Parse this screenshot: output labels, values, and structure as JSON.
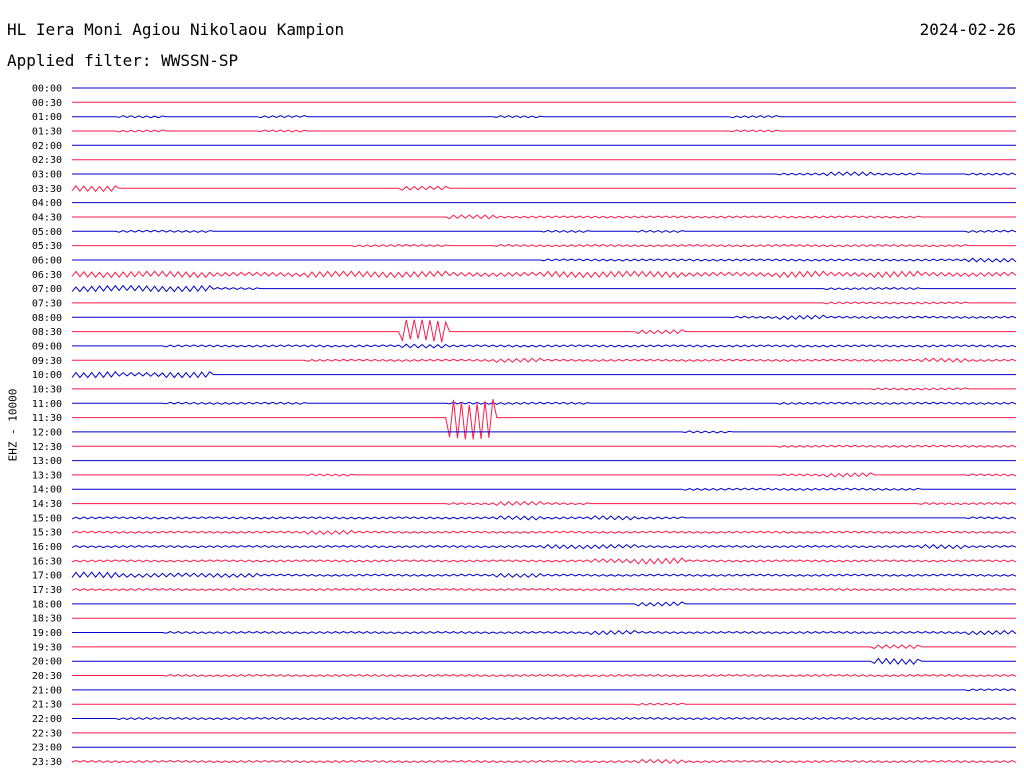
{
  "header": {
    "station": "HL Iera Moni Agiou Nikolaou Kampion",
    "date": "2024-02-26",
    "filter": "Applied filter: WWSSN-SP"
  },
  "axis": {
    "ylabel": "EHZ - 10000"
  },
  "colors": {
    "even_trace": "#0000cc",
    "odd_trace": "#ff1a4a",
    "text": "#000000"
  },
  "chart_data": {
    "type": "line",
    "title": "HL Iera Moni Agiou Nikolaou Kampion",
    "ylabel": "EHZ - 10000",
    "row_labels": [
      "00:00",
      "00:30",
      "01:00",
      "01:30",
      "02:00",
      "02:30",
      "03:00",
      "03:30",
      "04:00",
      "04:30",
      "05:00",
      "05:30",
      "06:00",
      "06:30",
      "07:00",
      "07:30",
      "08:00",
      "08:30",
      "09:00",
      "09:30",
      "10:00",
      "10:30",
      "11:00",
      "11:30",
      "12:00",
      "12:30",
      "13:00",
      "13:30",
      "14:00",
      "14:30",
      "15:00",
      "15:30",
      "16:00",
      "16:30",
      "17:00",
      "17:30",
      "18:00",
      "18:30",
      "19:00",
      "19:30",
      "20:00",
      "20:30",
      "21:00",
      "21:30",
      "22:00",
      "22:30",
      "23:00",
      "23:30"
    ],
    "series": [
      {
        "values": [
          0,
          0,
          0,
          0,
          0,
          0,
          0,
          0,
          0,
          0,
          0,
          0,
          0,
          0,
          0,
          0,
          0,
          0,
          0,
          0
        ]
      },
      {
        "values": [
          0,
          0,
          0,
          0,
          0,
          0,
          0,
          0,
          0,
          0,
          0,
          0,
          0,
          0,
          0,
          0,
          0,
          0,
          0,
          0
        ]
      },
      {
        "values": [
          0,
          1,
          0,
          0,
          1,
          0,
          0,
          0,
          0,
          1,
          0,
          0,
          0,
          0,
          1,
          0,
          0,
          0,
          0,
          0
        ]
      },
      {
        "values": [
          0,
          1,
          0,
          0,
          1,
          0,
          0,
          0,
          0,
          0,
          0,
          0,
          0,
          0,
          1,
          0,
          0,
          0,
          0,
          0
        ]
      },
      {
        "values": [
          0,
          0,
          0,
          0,
          0,
          0,
          0,
          0,
          0,
          0,
          0,
          0,
          0,
          0,
          0,
          0,
          0,
          0,
          0,
          0
        ]
      },
      {
        "values": [
          0,
          0,
          0,
          0,
          0,
          0,
          0,
          0,
          0,
          0,
          0,
          0,
          0,
          0,
          0,
          0,
          0,
          0,
          0,
          0
        ]
      },
      {
        "values": [
          0,
          0,
          0,
          0,
          0,
          0,
          0,
          0,
          0,
          0,
          0,
          0,
          0,
          0,
          0,
          1,
          2,
          1,
          0,
          1
        ]
      },
      {
        "values": [
          3,
          0,
          0,
          0,
          0,
          0,
          0,
          2,
          0,
          0,
          0,
          0,
          0,
          0,
          0,
          0,
          0,
          0,
          0,
          0
        ]
      },
      {
        "values": [
          0,
          0,
          0,
          0,
          0,
          0,
          0,
          0,
          0,
          0,
          0,
          0,
          0,
          0,
          0,
          0,
          0,
          0,
          0,
          0
        ]
      },
      {
        "values": [
          0,
          0,
          0,
          0,
          0,
          0,
          0,
          0,
          2,
          1,
          1,
          1,
          1,
          1,
          1,
          1,
          1,
          1,
          0,
          0
        ]
      },
      {
        "values": [
          0,
          1,
          1,
          0,
          0,
          0,
          0,
          0,
          0,
          0,
          1,
          0,
          1,
          0,
          0,
          0,
          0,
          0,
          0,
          1
        ]
      },
      {
        "values": [
          0,
          0,
          0,
          0,
          0,
          0,
          1,
          1,
          0,
          1,
          1,
          1,
          1,
          1,
          1,
          1,
          1,
          1,
          1,
          0
        ]
      },
      {
        "values": [
          0,
          0,
          0,
          0,
          0,
          0,
          0,
          0,
          0,
          0,
          1,
          1,
          1,
          1,
          1,
          1,
          1,
          1,
          1,
          2
        ]
      },
      {
        "values": [
          3,
          3,
          3,
          2,
          2,
          3,
          3,
          3,
          2,
          2,
          3,
          3,
          3,
          2,
          2,
          3,
          2,
          3,
          2,
          2
        ]
      },
      {
        "values": [
          3,
          3,
          3,
          1,
          0,
          0,
          0,
          0,
          0,
          0,
          0,
          0,
          0,
          0,
          0,
          0,
          1,
          1,
          0,
          0
        ]
      },
      {
        "values": [
          0,
          0,
          0,
          0,
          0,
          0,
          0,
          0,
          0,
          0,
          0,
          0,
          0,
          0,
          0,
          0,
          1,
          1,
          1,
          0
        ]
      },
      {
        "values": [
          0,
          0,
          0,
          0,
          0,
          0,
          0,
          0,
          0,
          0,
          0,
          0,
          0,
          0,
          1,
          2,
          1,
          1,
          1,
          1
        ]
      },
      {
        "values": [
          0,
          0,
          0,
          0,
          0,
          0,
          0,
          12,
          0,
          0,
          0,
          0,
          2,
          0,
          0,
          0,
          0,
          0,
          0,
          0
        ]
      },
      {
        "values": [
          0,
          0,
          1,
          1,
          1,
          1,
          1,
          2,
          1,
          1,
          1,
          1,
          1,
          1,
          1,
          1,
          1,
          1,
          1,
          1
        ]
      },
      {
        "values": [
          0,
          0,
          0,
          0,
          0,
          1,
          1,
          1,
          1,
          2,
          1,
          1,
          1,
          1,
          1,
          1,
          1,
          1,
          2,
          1
        ]
      },
      {
        "values": [
          3,
          2,
          3,
          0,
          0,
          0,
          0,
          0,
          0,
          0,
          0,
          0,
          0,
          0,
          0,
          0,
          0,
          0,
          0,
          0
        ]
      },
      {
        "values": [
          0,
          0,
          0,
          0,
          0,
          0,
          0,
          0,
          0,
          0,
          0,
          0,
          0,
          0,
          0,
          0,
          0,
          1,
          1,
          0
        ]
      },
      {
        "values": [
          0,
          0,
          1,
          1,
          1,
          0,
          0,
          0,
          1,
          1,
          1,
          0,
          0,
          0,
          0,
          1,
          1,
          1,
          1,
          1
        ]
      },
      {
        "values": [
          0,
          0,
          0,
          0,
          0,
          0,
          0,
          0,
          22,
          0,
          0,
          0,
          0,
          0,
          0,
          0,
          0,
          0,
          0,
          0
        ]
      },
      {
        "values": [
          0,
          0,
          0,
          0,
          0,
          0,
          0,
          0,
          0,
          0,
          0,
          0,
          0,
          1,
          0,
          0,
          0,
          0,
          0,
          0
        ]
      },
      {
        "values": [
          0,
          0,
          0,
          0,
          0,
          0,
          0,
          0,
          0,
          0,
          0,
          0,
          0,
          0,
          0,
          1,
          1,
          1,
          1,
          1
        ]
      },
      {
        "values": [
          0,
          0,
          0,
          0,
          0,
          0,
          0,
          0,
          0,
          0,
          0,
          0,
          0,
          0,
          0,
          0,
          0,
          0,
          0,
          0
        ]
      },
      {
        "values": [
          0,
          0,
          0,
          0,
          0,
          1,
          0,
          0,
          0,
          0,
          0,
          0,
          0,
          0,
          0,
          1,
          2,
          0,
          0,
          1
        ]
      },
      {
        "values": [
          0,
          0,
          0,
          0,
          0,
          0,
          0,
          0,
          0,
          0,
          0,
          0,
          0,
          1,
          1,
          1,
          1,
          1,
          0,
          0
        ]
      },
      {
        "values": [
          0,
          0,
          0,
          0,
          0,
          0,
          0,
          0,
          1,
          2,
          1,
          0,
          0,
          0,
          0,
          0,
          0,
          0,
          1,
          1
        ]
      },
      {
        "values": [
          1,
          1,
          1,
          1,
          1,
          1,
          1,
          1,
          1,
          2,
          1,
          2,
          1,
          0,
          0,
          0,
          0,
          0,
          0,
          1
        ]
      },
      {
        "values": [
          1,
          1,
          1,
          1,
          1,
          2,
          1,
          1,
          1,
          1,
          1,
          1,
          1,
          1,
          1,
          1,
          1,
          1,
          1,
          1
        ]
      },
      {
        "values": [
          1,
          1,
          1,
          1,
          1,
          1,
          1,
          1,
          1,
          1,
          2,
          2,
          1,
          1,
          1,
          1,
          1,
          1,
          2,
          1
        ]
      },
      {
        "values": [
          1,
          1,
          1,
          1,
          1,
          1,
          1,
          1,
          1,
          1,
          1,
          2,
          3,
          1,
          1,
          1,
          1,
          1,
          1,
          1
        ]
      },
      {
        "values": [
          3,
          2,
          2,
          2,
          1,
          1,
          1,
          1,
          1,
          2,
          1,
          1,
          1,
          1,
          1,
          1,
          1,
          1,
          1,
          1
        ]
      },
      {
        "values": [
          1,
          1,
          1,
          1,
          1,
          1,
          1,
          1,
          1,
          1,
          1,
          1,
          1,
          1,
          1,
          1,
          1,
          1,
          1,
          1
        ]
      },
      {
        "values": [
          0,
          0,
          0,
          0,
          0,
          0,
          0,
          0,
          0,
          0,
          0,
          0,
          2,
          0,
          0,
          0,
          0,
          0,
          0,
          0
        ]
      },
      {
        "values": [
          0,
          0,
          0,
          0,
          0,
          0,
          0,
          0,
          0,
          0,
          0,
          0,
          0,
          0,
          0,
          0,
          0,
          0,
          0,
          0
        ]
      },
      {
        "values": [
          0,
          0,
          1,
          1,
          1,
          1,
          1,
          1,
          1,
          1,
          1,
          2,
          1,
          1,
          1,
          1,
          1,
          1,
          1,
          2
        ]
      },
      {
        "values": [
          0,
          0,
          0,
          0,
          0,
          0,
          0,
          0,
          0,
          0,
          0,
          0,
          0,
          0,
          0,
          0,
          0,
          2,
          0,
          0
        ]
      },
      {
        "values": [
          0,
          0,
          0,
          0,
          0,
          0,
          0,
          0,
          0,
          0,
          0,
          0,
          0,
          0,
          0,
          0,
          0,
          3,
          0,
          0
        ]
      },
      {
        "values": [
          0,
          0,
          1,
          1,
          1,
          1,
          1,
          1,
          1,
          1,
          1,
          1,
          1,
          1,
          1,
          1,
          1,
          1,
          1,
          1
        ]
      },
      {
        "values": [
          0,
          0,
          0,
          0,
          0,
          0,
          0,
          0,
          0,
          0,
          0,
          0,
          0,
          0,
          0,
          0,
          0,
          0,
          0,
          1
        ]
      },
      {
        "values": [
          0,
          0,
          0,
          0,
          0,
          0,
          0,
          0,
          0,
          0,
          0,
          0,
          1,
          0,
          0,
          0,
          0,
          0,
          0,
          0
        ]
      },
      {
        "values": [
          0,
          1,
          1,
          1,
          1,
          1,
          1,
          1,
          1,
          1,
          1,
          1,
          1,
          1,
          1,
          1,
          1,
          1,
          1,
          1
        ]
      },
      {
        "values": [
          0,
          0,
          0,
          0,
          0,
          0,
          0,
          0,
          0,
          0,
          0,
          0,
          0,
          0,
          0,
          0,
          0,
          0,
          0,
          0
        ]
      },
      {
        "values": [
          0,
          0,
          0,
          0,
          0,
          0,
          0,
          0,
          0,
          0,
          0,
          0,
          0,
          0,
          0,
          0,
          0,
          0,
          0,
          0
        ]
      },
      {
        "values": [
          1,
          1,
          1,
          1,
          1,
          1,
          1,
          1,
          1,
          1,
          1,
          1,
          2,
          1,
          1,
          1,
          1,
          1,
          1,
          1
        ]
      }
    ]
  }
}
